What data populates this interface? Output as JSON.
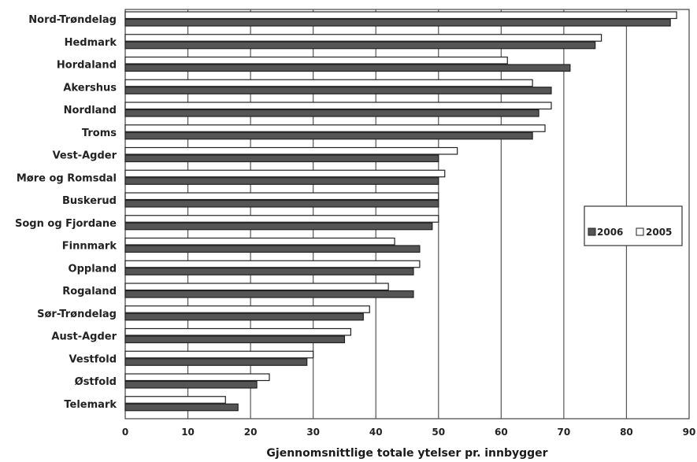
{
  "chart_data": {
    "type": "bar",
    "orientation": "horizontal",
    "categories": [
      "Nord-Trøndelag",
      "Hedmark",
      "Hordaland",
      "Akershus",
      "Nordland",
      "Troms",
      "Vest-Agder",
      "Møre og Romsdal",
      "Buskerud",
      "Sogn og Fjordane",
      "Finnmark",
      "Oppland",
      "Rogaland",
      "Sør-Trøndelag",
      "Aust-Agder",
      "Vestfold",
      "Østfold",
      "Telemark"
    ],
    "series": [
      {
        "name": "2006",
        "color": "#555555",
        "values": [
          87,
          75,
          71,
          68,
          66,
          65,
          50,
          50,
          50,
          49,
          47,
          46,
          46,
          38,
          35,
          29,
          21,
          18
        ]
      },
      {
        "name": "2005",
        "color": "#ffffff",
        "values": [
          88,
          76,
          61,
          65,
          68,
          67,
          53,
          51,
          50,
          50,
          43,
          47,
          42,
          39,
          36,
          30,
          23,
          16
        ]
      }
    ],
    "xlabel": "Gjennomsnittlige totale ytelser pr. innbygger",
    "ylabel": "",
    "xlim": [
      0,
      90
    ],
    "xticks": [
      0,
      10,
      20,
      30,
      40,
      50,
      60,
      70,
      80,
      90
    ],
    "grid": "vertical",
    "legend_position": "right"
  }
}
